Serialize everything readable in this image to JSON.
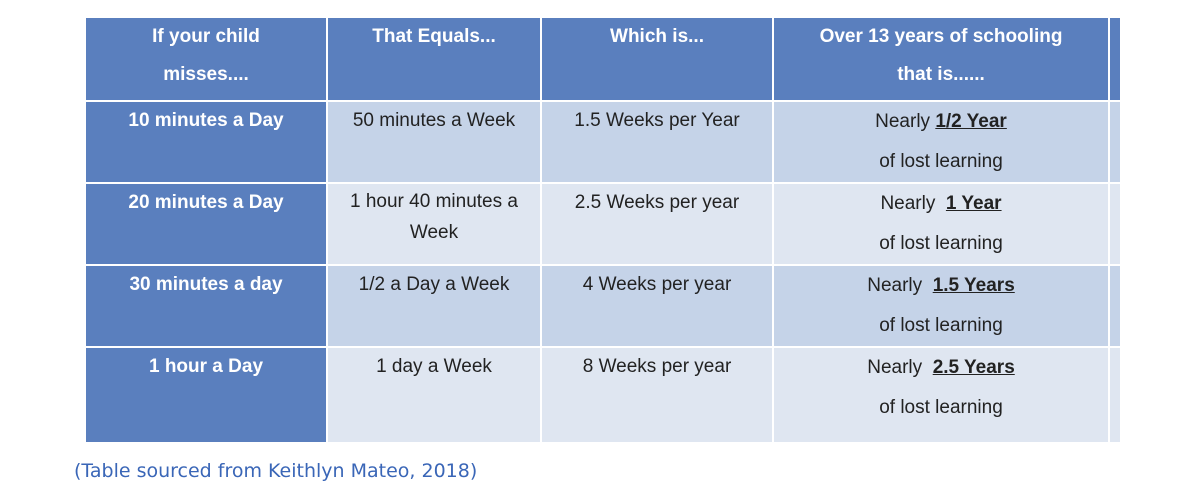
{
  "table": {
    "headers": [
      [
        "If your child",
        "misses...."
      ],
      [
        "That Equals..."
      ],
      [
        "Which is..."
      ],
      [
        "Over 13 years of schooling",
        "that is......"
      ]
    ],
    "rows": [
      {
        "misses": "10 minutes a Day",
        "equals": "50 minutes a Week",
        "which_is": "1.5 Weeks per Year",
        "over_prefix": "Nearly ",
        "over_amount": "1/2 Year",
        "over_suffix": "of lost learning"
      },
      {
        "misses": "20 minutes a Day",
        "equals_line1": "1 hour 40 minutes a",
        "equals_line2": "Week",
        "which_is": "2.5 Weeks per year",
        "over_prefix": "Nearly  ",
        "over_amount": "1 Year",
        "over_suffix": "of lost learning"
      },
      {
        "misses": "30 minutes a day",
        "equals": "1/2 a Day a Week",
        "which_is": "4 Weeks per year",
        "over_prefix": "Nearly  ",
        "over_amount": "1.5 Years",
        "over_suffix": "of lost learning"
      },
      {
        "misses": "1 hour a Day",
        "equals": "1 day a Week",
        "which_is": "8 Weeks per year",
        "over_prefix": "Nearly  ",
        "over_amount": "2.5 Years",
        "over_suffix": "of lost learning"
      }
    ]
  },
  "caption": "(Table sourced from Keithlyn Mateo, 2018)",
  "colors": {
    "header_blue": "#5a7fbe",
    "row_light": "#c5d3e8",
    "row_lighter": "#dfe6f1",
    "caption_blue": "#3a66b7"
  }
}
